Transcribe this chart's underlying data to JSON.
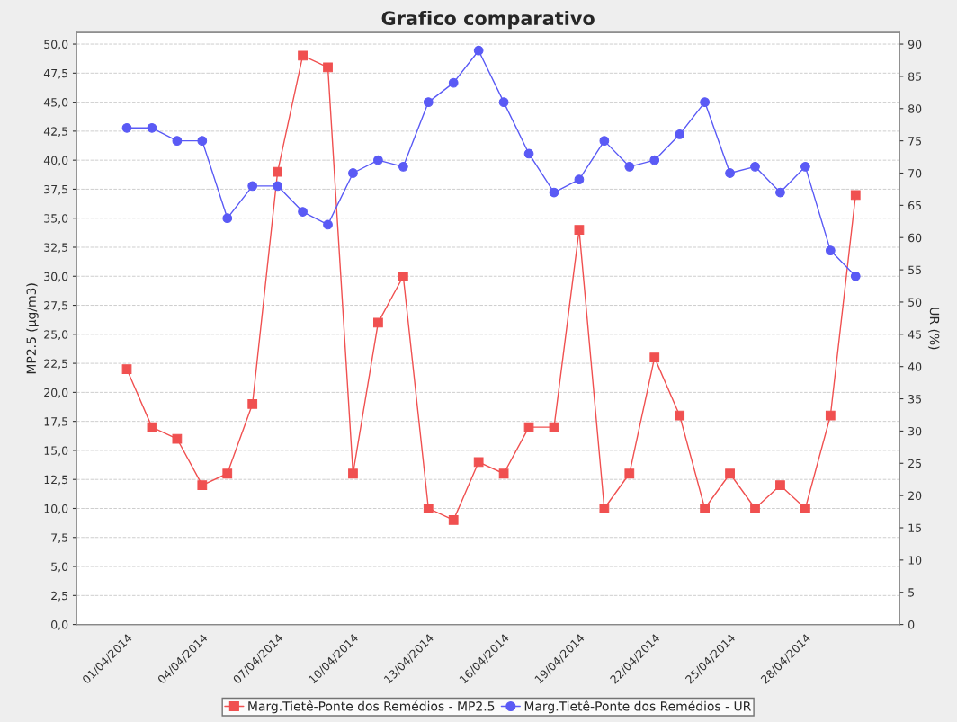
{
  "chart_data": {
    "type": "line",
    "title": "Grafico comparativo",
    "ylabel": "MP2.5 (µg/m3)",
    "y2label": "UR (%)",
    "x": [
      "2014-04-01",
      "2014-04-02",
      "2014-04-03",
      "2014-04-04",
      "2014-04-05",
      "2014-04-06",
      "2014-04-07",
      "2014-04-08",
      "2014-04-09",
      "2014-04-10",
      "2014-04-11",
      "2014-04-12",
      "2014-04-13",
      "2014-04-14",
      "2014-04-15",
      "2014-04-16",
      "2014-04-17",
      "2014-04-18",
      "2014-04-19",
      "2014-04-20",
      "2014-04-21",
      "2014-04-22",
      "2014-04-23",
      "2014-04-24",
      "2014-04-25",
      "2014-04-26",
      "2014-04-27",
      "2014-04-28",
      "2014-04-29",
      "2014-04-30"
    ],
    "series": [
      {
        "name": "Marg.Tietê-Ponte dos Remédios - MP2.5",
        "color": "#f05050",
        "marker": "square",
        "values": [
          22,
          17,
          16,
          12,
          13,
          19,
          39,
          49,
          48,
          13,
          26,
          30,
          10,
          9,
          14,
          13,
          17,
          17,
          34,
          10,
          13,
          23,
          18,
          10,
          13,
          10,
          12,
          10,
          18,
          37
        ]
      },
      {
        "name": "Marg.Tietê-Ponte dos Remédios - UR",
        "color": "#5a5af5",
        "marker": "circle",
        "axis": "y2",
        "values": [
          77,
          77,
          75,
          75,
          63,
          68,
          68,
          64,
          62,
          70,
          72,
          71,
          81,
          84,
          89,
          81,
          73,
          67,
          69,
          75,
          71,
          72,
          76,
          81,
          70,
          71,
          67,
          71,
          58,
          54
        ]
      }
    ],
    "xlim": [
      "2014-03-30",
      "2014-05-01T18:00"
    ],
    "xticks": [
      {
        "value": "2014-04-01",
        "label": "01/04/2014"
      },
      {
        "value": "2014-04-04",
        "label": "04/04/2014"
      },
      {
        "value": "2014-04-07",
        "label": "07/04/2014"
      },
      {
        "value": "2014-04-10",
        "label": "10/04/2014"
      },
      {
        "value": "2014-04-13",
        "label": "13/04/2014"
      },
      {
        "value": "2014-04-16",
        "label": "16/04/2014"
      },
      {
        "value": "2014-04-19",
        "label": "19/04/2014"
      },
      {
        "value": "2014-04-22",
        "label": "22/04/2014"
      },
      {
        "value": "2014-04-25",
        "label": "25/04/2014"
      },
      {
        "value": "2014-04-28",
        "label": "28/04/2014"
      }
    ],
    "ylim": [
      0,
      51
    ],
    "yticks": [
      {
        "value": 0,
        "label": "0,0"
      },
      {
        "value": 2.5,
        "label": "2,5"
      },
      {
        "value": 5,
        "label": "5,0"
      },
      {
        "value": 7.5,
        "label": "7,5"
      },
      {
        "value": 10,
        "label": "10,0"
      },
      {
        "value": 12.5,
        "label": "12,5"
      },
      {
        "value": 15,
        "label": "15,0"
      },
      {
        "value": 17.5,
        "label": "17,5"
      },
      {
        "value": 20,
        "label": "20,0"
      },
      {
        "value": 22.5,
        "label": "22,5"
      },
      {
        "value": 25,
        "label": "25,0"
      },
      {
        "value": 27.5,
        "label": "27,5"
      },
      {
        "value": 30,
        "label": "30,0"
      },
      {
        "value": 32.5,
        "label": "32,5"
      },
      {
        "value": 35,
        "label": "35,0"
      },
      {
        "value": 37.5,
        "label": "37,5"
      },
      {
        "value": 40,
        "label": "40,0"
      },
      {
        "value": 42.5,
        "label": "42,5"
      },
      {
        "value": 45,
        "label": "45,0"
      },
      {
        "value": 47.5,
        "label": "47,5"
      },
      {
        "value": 50,
        "label": "50,0"
      }
    ],
    "y2lim": [
      0,
      91.8
    ],
    "y2ticks": [
      0,
      5,
      10,
      15,
      20,
      25,
      30,
      35,
      40,
      45,
      50,
      55,
      60,
      65,
      70,
      75,
      80,
      85,
      90
    ],
    "grid": "y",
    "legend": "bottom",
    "line_style": "solid"
  }
}
